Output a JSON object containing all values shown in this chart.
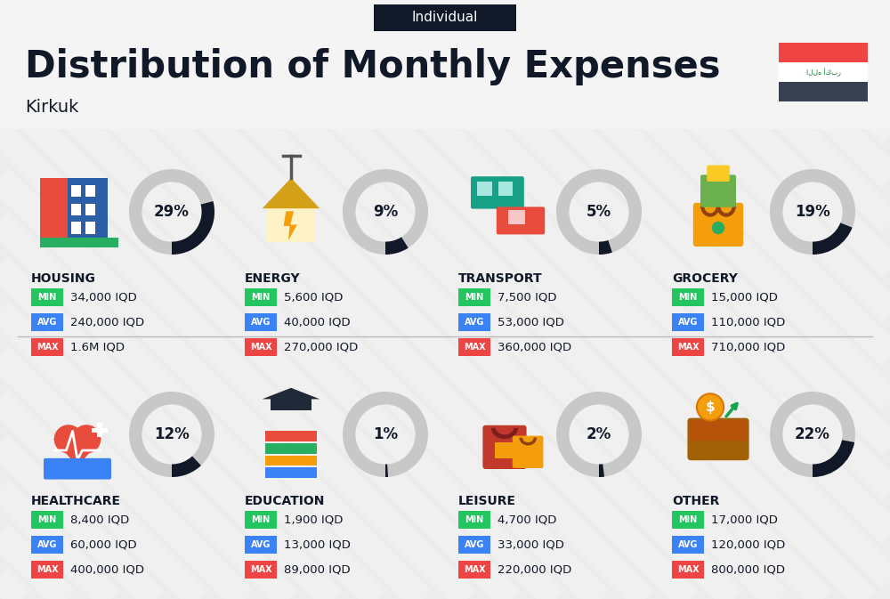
{
  "title": "Distribution of Monthly Expenses",
  "subtitle": "Individual",
  "city": "Kirkuk",
  "categories": [
    {
      "name": "HOUSING",
      "percent": 29,
      "min": "34,000 IQD",
      "avg": "240,000 IQD",
      "max": "1.6M IQD",
      "row": 0,
      "col": 0
    },
    {
      "name": "ENERGY",
      "percent": 9,
      "min": "5,600 IQD",
      "avg": "40,000 IQD",
      "max": "270,000 IQD",
      "row": 0,
      "col": 1
    },
    {
      "name": "TRANSPORT",
      "percent": 5,
      "min": "7,500 IQD",
      "avg": "53,000 IQD",
      "max": "360,000 IQD",
      "row": 0,
      "col": 2
    },
    {
      "name": "GROCERY",
      "percent": 19,
      "min": "15,000 IQD",
      "avg": "110,000 IQD",
      "max": "710,000 IQD",
      "row": 0,
      "col": 3
    },
    {
      "name": "HEALTHCARE",
      "percent": 12,
      "min": "8,400 IQD",
      "avg": "60,000 IQD",
      "max": "400,000 IQD",
      "row": 1,
      "col": 0
    },
    {
      "name": "EDUCATION",
      "percent": 1,
      "min": "1,900 IQD",
      "avg": "13,000 IQD",
      "max": "89,000 IQD",
      "row": 1,
      "col": 1
    },
    {
      "name": "LEISURE",
      "percent": 2,
      "min": "4,700 IQD",
      "avg": "33,000 IQD",
      "max": "220,000 IQD",
      "row": 1,
      "col": 2
    },
    {
      "name": "OTHER",
      "percent": 22,
      "min": "17,000 IQD",
      "avg": "120,000 IQD",
      "max": "800,000 IQD",
      "row": 1,
      "col": 3
    }
  ],
  "color_min": "#22c55e",
  "color_avg": "#3b82f6",
  "color_max": "#ef4444",
  "bg_color": "#ececec",
  "stripe_color": "#ffffff",
  "header_bg": "#f7f7f7",
  "badge_bg": "#111827",
  "dark_text": "#111827",
  "flag_red": "#ef4444",
  "flag_white": "#ffffff",
  "flag_dark": "#374151",
  "donut_bg": "#c8c8c8",
  "donut_fill": "#111827"
}
